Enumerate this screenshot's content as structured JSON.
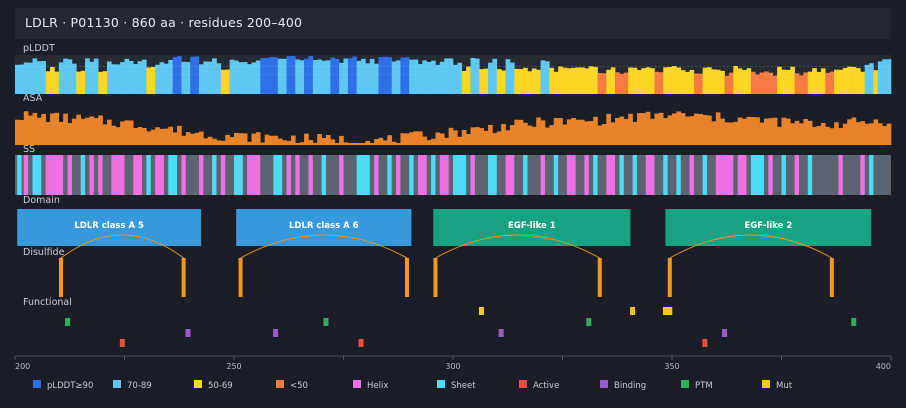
{
  "header": {
    "title": "LDLR  ·  P01130  ·  860 aa  ·  residues 200–400"
  },
  "tracks": {
    "plddt": "pLDDT",
    "asa": "ASA",
    "ss": "SS",
    "domain": "Domain",
    "disulfide": "Disulfide",
    "functional": "Functional"
  },
  "colors": {
    "bg": "#1b1e26",
    "track_bg": "#252a33",
    "plddt_vh": "#2f6fe8",
    "plddt_h": "#5ec8f2",
    "plddt_m": "#fbd623",
    "plddt_l": "#f47b43",
    "asa": "#e8832c",
    "helix": "#ef6fe4",
    "sheet": "#4adcf5",
    "coil": "#5b6470",
    "active": "#e8503f",
    "binding": "#9d59c9",
    "ptm": "#2fae5c",
    "mut": "#f5c71e",
    "domain_ldlr": "#3798dc",
    "domain_egf": "#18a283",
    "disulfide": "#f29a1f"
  },
  "chart_data": {
    "type": "track-viewer",
    "x_range": [
      200,
      400
    ],
    "x_ticks": [
      200,
      250,
      300,
      350,
      400
    ],
    "plddt_segments": [
      {
        "start": 200,
        "end": 207,
        "class": "h"
      },
      {
        "start": 207,
        "end": 210,
        "class": "m"
      },
      {
        "start": 210,
        "end": 214,
        "class": "h"
      },
      {
        "start": 214,
        "end": 216,
        "class": "m"
      },
      {
        "start": 216,
        "end": 219,
        "class": "h"
      },
      {
        "start": 219,
        "end": 221,
        "class": "m"
      },
      {
        "start": 221,
        "end": 230,
        "class": "h"
      },
      {
        "start": 230,
        "end": 232,
        "class": "m"
      },
      {
        "start": 232,
        "end": 236,
        "class": "h"
      },
      {
        "start": 236,
        "end": 238,
        "class": "vh"
      },
      {
        "start": 238,
        "end": 240,
        "class": "h"
      },
      {
        "start": 240,
        "end": 242,
        "class": "vh"
      },
      {
        "start": 242,
        "end": 247,
        "class": "h"
      },
      {
        "start": 247,
        "end": 249,
        "class": "m"
      },
      {
        "start": 249,
        "end": 256,
        "class": "h"
      },
      {
        "start": 256,
        "end": 260,
        "class": "vh"
      },
      {
        "start": 260,
        "end": 262,
        "class": "h"
      },
      {
        "start": 262,
        "end": 264,
        "class": "vh"
      },
      {
        "start": 264,
        "end": 266,
        "class": "h"
      },
      {
        "start": 266,
        "end": 268,
        "class": "vh"
      },
      {
        "start": 268,
        "end": 272,
        "class": "h"
      },
      {
        "start": 272,
        "end": 274,
        "class": "vh"
      },
      {
        "start": 274,
        "end": 276,
        "class": "h"
      },
      {
        "start": 276,
        "end": 278,
        "class": "vh"
      },
      {
        "start": 278,
        "end": 283,
        "class": "h"
      },
      {
        "start": 283,
        "end": 286,
        "class": "vh"
      },
      {
        "start": 286,
        "end": 288,
        "class": "h"
      },
      {
        "start": 288,
        "end": 290,
        "class": "vh"
      },
      {
        "start": 290,
        "end": 302,
        "class": "h"
      },
      {
        "start": 302,
        "end": 304,
        "class": "m"
      },
      {
        "start": 304,
        "end": 306,
        "class": "h"
      },
      {
        "start": 306,
        "end": 308,
        "class": "m"
      },
      {
        "start": 308,
        "end": 310,
        "class": "h"
      },
      {
        "start": 310,
        "end": 312,
        "class": "m"
      },
      {
        "start": 312,
        "end": 314,
        "class": "h"
      },
      {
        "start": 314,
        "end": 320,
        "class": "m"
      },
      {
        "start": 320,
        "end": 322,
        "class": "h"
      },
      {
        "start": 322,
        "end": 333,
        "class": "m"
      },
      {
        "start": 333,
        "end": 335,
        "class": "l"
      },
      {
        "start": 335,
        "end": 337,
        "class": "m"
      },
      {
        "start": 337,
        "end": 340,
        "class": "l"
      },
      {
        "start": 340,
        "end": 346,
        "class": "m"
      },
      {
        "start": 346,
        "end": 348,
        "class": "l"
      },
      {
        "start": 348,
        "end": 355,
        "class": "m"
      },
      {
        "start": 355,
        "end": 357,
        "class": "l"
      },
      {
        "start": 357,
        "end": 362,
        "class": "m"
      },
      {
        "start": 362,
        "end": 364,
        "class": "l"
      },
      {
        "start": 364,
        "end": 368,
        "class": "m"
      },
      {
        "start": 368,
        "end": 374,
        "class": "l"
      },
      {
        "start": 374,
        "end": 378,
        "class": "m"
      },
      {
        "start": 378,
        "end": 381,
        "class": "l"
      },
      {
        "start": 381,
        "end": 385,
        "class": "m"
      },
      {
        "start": 385,
        "end": 387,
        "class": "l"
      },
      {
        "start": 387,
        "end": 394,
        "class": "m"
      },
      {
        "start": 394,
        "end": 396,
        "class": "h"
      },
      {
        "start": 396,
        "end": 397,
        "class": "m"
      },
      {
        "start": 397,
        "end": 400,
        "class": "h"
      }
    ],
    "asa_control_points": [
      [
        200,
        0.74
      ],
      [
        205,
        0.72
      ],
      [
        210,
        0.68
      ],
      [
        215,
        0.64
      ],
      [
        220,
        0.6
      ],
      [
        225,
        0.55
      ],
      [
        230,
        0.48
      ],
      [
        235,
        0.4
      ],
      [
        240,
        0.32
      ],
      [
        245,
        0.26
      ],
      [
        250,
        0.22
      ],
      [
        255,
        0.2
      ],
      [
        260,
        0.18
      ],
      [
        265,
        0.16
      ],
      [
        270,
        0.14
      ],
      [
        275,
        0.13
      ],
      [
        280,
        0.1
      ],
      [
        285,
        0.12
      ],
      [
        290,
        0.18
      ],
      [
        295,
        0.26
      ],
      [
        300,
        0.32
      ],
      [
        305,
        0.38
      ],
      [
        310,
        0.44
      ],
      [
        315,
        0.5
      ],
      [
        320,
        0.56
      ],
      [
        325,
        0.58
      ],
      [
        330,
        0.6
      ],
      [
        335,
        0.64
      ],
      [
        340,
        0.68
      ],
      [
        345,
        0.72
      ],
      [
        350,
        0.76
      ],
      [
        355,
        0.72
      ],
      [
        360,
        0.68
      ],
      [
        365,
        0.66
      ],
      [
        370,
        0.62
      ],
      [
        375,
        0.58
      ],
      [
        380,
        0.54
      ],
      [
        385,
        0.52
      ],
      [
        390,
        0.55
      ],
      [
        395,
        0.58
      ],
      [
        400,
        0.62
      ]
    ],
    "ss_segments": [
      {
        "start": 200.5,
        "end": 201.5,
        "class": "sheet"
      },
      {
        "start": 202,
        "end": 203,
        "class": "helix"
      },
      {
        "start": 204,
        "end": 206,
        "class": "sheet"
      },
      {
        "start": 207,
        "end": 211,
        "class": "helix"
      },
      {
        "start": 212,
        "end": 213,
        "class": "helix"
      },
      {
        "start": 215,
        "end": 216,
        "class": "sheet"
      },
      {
        "start": 217,
        "end": 218,
        "class": "helix"
      },
      {
        "start": 219,
        "end": 220,
        "class": "helix"
      },
      {
        "start": 222,
        "end": 225,
        "class": "helix"
      },
      {
        "start": 227,
        "end": 229,
        "class": "helix"
      },
      {
        "start": 230,
        "end": 231,
        "class": "sheet"
      },
      {
        "start": 232,
        "end": 234,
        "class": "helix"
      },
      {
        "start": 235,
        "end": 237,
        "class": "sheet"
      },
      {
        "start": 238,
        "end": 239,
        "class": "helix"
      },
      {
        "start": 242,
        "end": 243,
        "class": "helix"
      },
      {
        "start": 245,
        "end": 246,
        "class": "sheet"
      },
      {
        "start": 247,
        "end": 248,
        "class": "helix"
      },
      {
        "start": 250,
        "end": 252,
        "class": "sheet"
      },
      {
        "start": 253,
        "end": 256,
        "class": "helix"
      },
      {
        "start": 259,
        "end": 261,
        "class": "sheet"
      },
      {
        "start": 262,
        "end": 263,
        "class": "helix"
      },
      {
        "start": 264,
        "end": 265,
        "class": "helix"
      },
      {
        "start": 267,
        "end": 268,
        "class": "helix"
      },
      {
        "start": 270,
        "end": 271,
        "class": "sheet"
      },
      {
        "start": 274,
        "end": 275,
        "class": "helix"
      },
      {
        "start": 278,
        "end": 281,
        "class": "sheet"
      },
      {
        "start": 282,
        "end": 283,
        "class": "helix"
      },
      {
        "start": 285,
        "end": 286,
        "class": "sheet"
      },
      {
        "start": 287,
        "end": 288,
        "class": "helix"
      },
      {
        "start": 290,
        "end": 291,
        "class": "sheet"
      },
      {
        "start": 292,
        "end": 294,
        "class": "helix"
      },
      {
        "start": 295,
        "end": 296,
        "class": "sheet"
      },
      {
        "start": 297,
        "end": 299,
        "class": "helix"
      },
      {
        "start": 300,
        "end": 303,
        "class": "sheet"
      },
      {
        "start": 304,
        "end": 305,
        "class": "helix"
      },
      {
        "start": 308,
        "end": 310,
        "class": "sheet"
      },
      {
        "start": 312,
        "end": 314,
        "class": "helix"
      },
      {
        "start": 316,
        "end": 317,
        "class": "sheet"
      },
      {
        "start": 320,
        "end": 321,
        "class": "helix"
      },
      {
        "start": 323,
        "end": 324,
        "class": "sheet"
      },
      {
        "start": 326,
        "end": 328,
        "class": "helix"
      },
      {
        "start": 330,
        "end": 331,
        "class": "helix"
      },
      {
        "start": 332,
        "end": 333,
        "class": "sheet"
      },
      {
        "start": 335,
        "end": 337,
        "class": "helix"
      },
      {
        "start": 338,
        "end": 339,
        "class": "sheet"
      },
      {
        "start": 341,
        "end": 342,
        "class": "sheet"
      },
      {
        "start": 344,
        "end": 346,
        "class": "helix"
      },
      {
        "start": 348,
        "end": 349,
        "class": "sheet"
      },
      {
        "start": 351,
        "end": 352,
        "class": "sheet"
      },
      {
        "start": 354,
        "end": 355,
        "class": "helix"
      },
      {
        "start": 357,
        "end": 358,
        "class": "sheet"
      },
      {
        "start": 360,
        "end": 364,
        "class": "helix"
      },
      {
        "start": 365,
        "end": 367,
        "class": "helix"
      },
      {
        "start": 368,
        "end": 371,
        "class": "sheet"
      },
      {
        "start": 372,
        "end": 373,
        "class": "helix"
      },
      {
        "start": 375,
        "end": 376,
        "class": "sheet"
      },
      {
        "start": 378,
        "end": 379,
        "class": "helix"
      },
      {
        "start": 381,
        "end": 382,
        "class": "sheet"
      },
      {
        "start": 388,
        "end": 389,
        "class": "helix"
      },
      {
        "start": 393,
        "end": 394,
        "class": "helix"
      },
      {
        "start": 395,
        "end": 396,
        "class": "sheet"
      }
    ],
    "domains": [
      {
        "name": "LDLR class A 5",
        "start": 200.5,
        "end": 242.5,
        "kind": "ldlr"
      },
      {
        "name": "LDLR class A 6",
        "start": 250.5,
        "end": 290.5,
        "kind": "ldlr"
      },
      {
        "name": "EGF-like 1",
        "start": 295.5,
        "end": 340.5,
        "kind": "egf"
      },
      {
        "name": "EGF-like 2",
        "start": 348.5,
        "end": 395.5,
        "kind": "egf"
      }
    ],
    "disulfides": [
      [
        210.5,
        238.5
      ],
      [
        251.5,
        289.5
      ],
      [
        296,
        333.5
      ],
      [
        349.5,
        386.5
      ]
    ],
    "functional": {
      "mut": [
        306.5,
        341,
        349.5,
        348.5
      ],
      "ptm": [
        212,
        271,
        331,
        391.5
      ],
      "binding": [
        239.5,
        259.5,
        311,
        362
      ],
      "active": [
        224.5,
        279,
        357.5
      ]
    },
    "functional_rows": {
      "mut": 0,
      "ptm": 1,
      "binding": 2,
      "active": 3
    },
    "legend": [
      {
        "label": "pLDDT≥90",
        "color_key": "plddt_vh"
      },
      {
        "label": "70-89",
        "color_key": "plddt_h"
      },
      {
        "label": "50-69",
        "color_key": "plddt_m"
      },
      {
        "label": "<50",
        "color_key": "plddt_l"
      },
      {
        "label": "Helix",
        "color_key": "helix"
      },
      {
        "label": "Sheet",
        "color_key": "sheet"
      },
      {
        "label": "Active",
        "color_key": "active"
      },
      {
        "label": "Binding",
        "color_key": "binding"
      },
      {
        "label": "PTM",
        "color_key": "ptm"
      },
      {
        "label": "Mut",
        "color_key": "mut"
      }
    ]
  }
}
